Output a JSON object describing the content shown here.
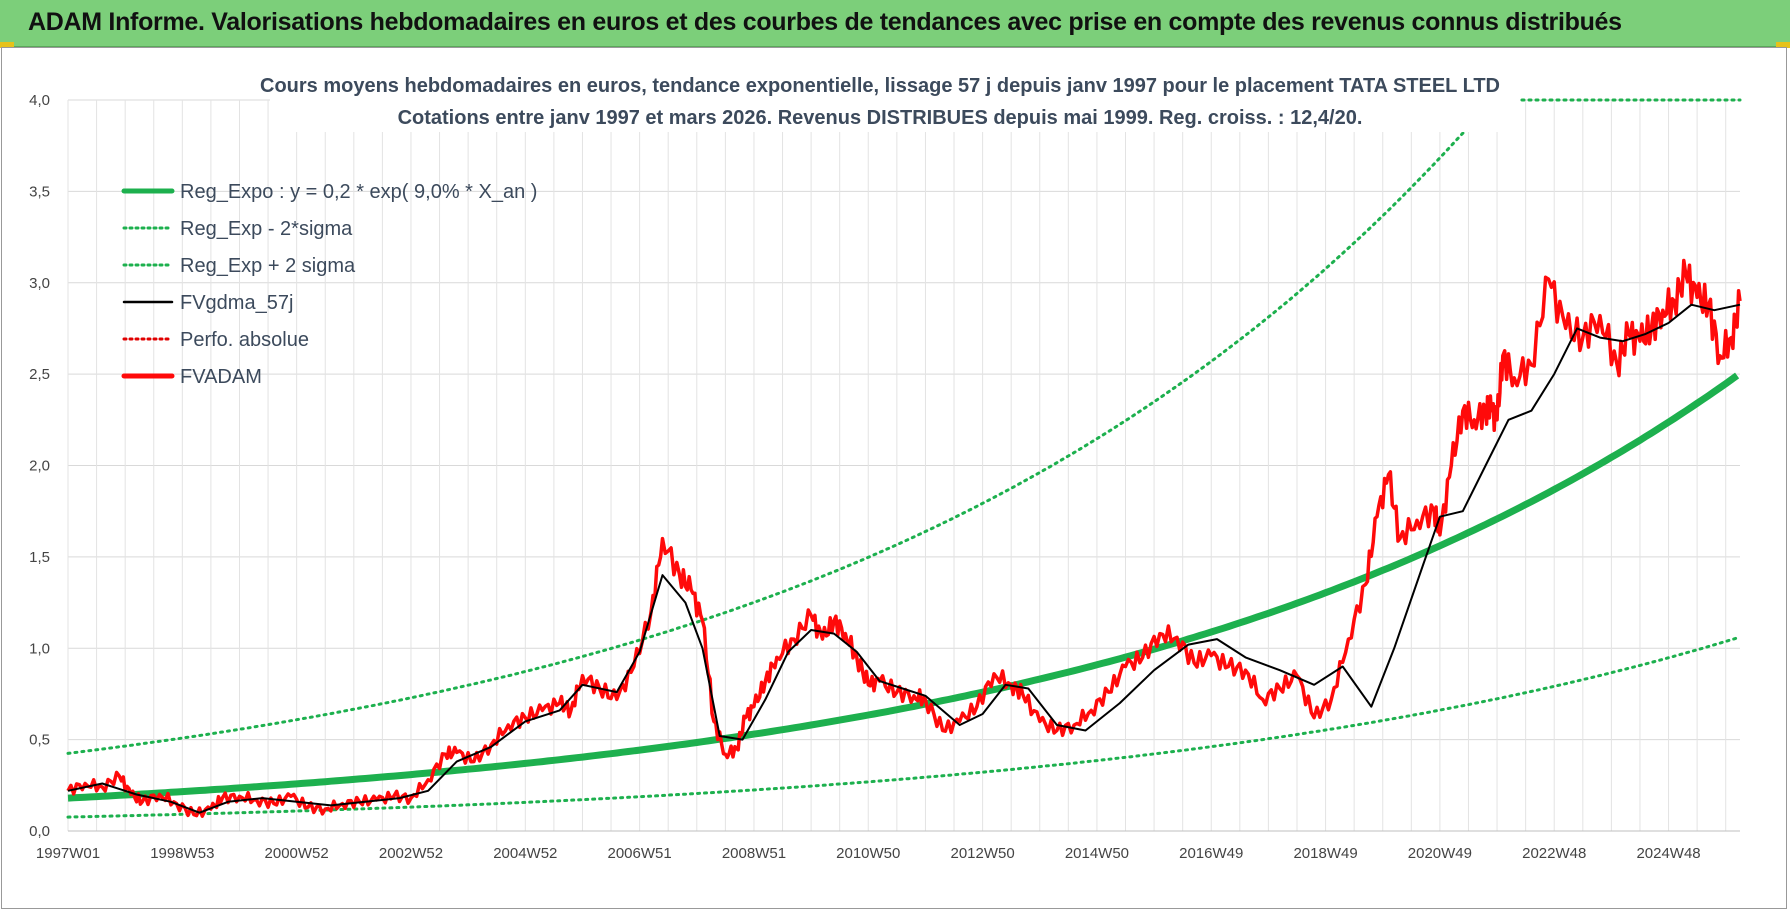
{
  "banner": {
    "title": "ADAM Informe. Valorisations hebdomadaires en euros et des courbes de tendances avec prise en compte des revenus connus distribués"
  },
  "colors": {
    "banner": "#7ccf7a",
    "reg_expo": "#1db04e",
    "sigma": "#1db04e",
    "fvgdma": "#000000",
    "perfo": "#e00000",
    "fvadam": "#ff0a0a"
  },
  "chart_data": {
    "type": "line",
    "title_line1": "Cours moyens hebdomadaires en euros, tendance exponentielle, lissage 57 j depuis janv 1997  pour le placement TATA STEEL LTD",
    "title_line2": "Cotations entre janv 1997 et mars 2026. Revenus DISTRIBUES depuis mai 1999. Reg. croiss. : 12,4/20.",
    "ylim": [
      0,
      4.0
    ],
    "y_ticks": [
      "0,0",
      "0,5",
      "1,0",
      "1,5",
      "2,0",
      "2,5",
      "3,0",
      "3,5",
      "4,0"
    ],
    "x_range_years": [
      1997.0,
      2026.25
    ],
    "x_ticks": [
      {
        "label": "1997W01",
        "year": 1997.0
      },
      {
        "label": "1998W53",
        "year": 1999.0
      },
      {
        "label": "2000W52",
        "year": 2001.0
      },
      {
        "label": "2002W52",
        "year": 2003.0
      },
      {
        "label": "2004W52",
        "year": 2005.0
      },
      {
        "label": "2006W51",
        "year": 2007.0
      },
      {
        "label": "2008W51",
        "year": 2009.0
      },
      {
        "label": "2010W50",
        "year": 2011.0
      },
      {
        "label": "2012W50",
        "year": 2013.0
      },
      {
        "label": "2014W50",
        "year": 2015.0
      },
      {
        "label": "2016W49",
        "year": 2017.0
      },
      {
        "label": "2018W49",
        "year": 2019.0
      },
      {
        "label": "2020W49",
        "year": 2021.0
      },
      {
        "label": "2022W48",
        "year": 2023.0
      },
      {
        "label": "2024W48",
        "year": 2025.0
      }
    ],
    "grid": true,
    "legend_position": "top-left",
    "legend": [
      {
        "name": "Reg_Expo : y = 0,2 * exp( 9,0% *  X_an )",
        "style": "thick-solid",
        "color": "#1db04e"
      },
      {
        "name": "Reg_Exp - 2*sigma",
        "style": "dotted",
        "color": "#1db04e"
      },
      {
        "name": "Reg_Exp + 2 sigma",
        "style": "dotted",
        "color": "#1db04e"
      },
      {
        "name": "FVgdma_57j",
        "style": "solid",
        "color": "#000000"
      },
      {
        "name": "Perfo. absolue",
        "style": "dotted",
        "color": "#e00000"
      },
      {
        "name": "FVADAM",
        "style": "thick-solid",
        "color": "#ff0a0a"
      }
    ],
    "regression": {
      "a": 0.18,
      "rate": 0.09,
      "sigma_factor": 2.36
    },
    "series": [
      {
        "name": "FVADAM",
        "x": [
          1997.0,
          1997.3,
          1997.6,
          1997.9,
          1998.1,
          1998.3,
          1998.6,
          1998.9,
          1999.2,
          1999.5,
          1999.7,
          2000.0,
          2000.3,
          2000.6,
          2000.9,
          2001.2,
          2001.5,
          2001.8,
          2002.1,
          2002.4,
          2002.7,
          2003.0,
          2003.3,
          2003.6,
          2003.8,
          2004.1,
          2004.4,
          2004.7,
          2005.0,
          2005.3,
          2005.6,
          2005.8,
          2006.0,
          2006.3,
          2006.6,
          2006.9,
          2007.2,
          2007.4,
          2007.7,
          2007.9,
          2008.1,
          2008.3,
          2008.5,
          2008.7,
          2008.85,
          2009.0,
          2009.2,
          2009.4,
          2009.7,
          2010.0,
          2010.2,
          2010.4,
          2010.6,
          2010.8,
          2011.0,
          2011.2,
          2011.5,
          2011.8,
          2012.0,
          2012.3,
          2012.6,
          2012.9,
          2013.2,
          2013.5,
          2013.7,
          2014.0,
          2014.3,
          2014.6,
          2014.9,
          2015.2,
          2015.5,
          2015.8,
          2016.1,
          2016.4,
          2016.7,
          2017.0,
          2017.3,
          2017.6,
          2017.9,
          2018.2,
          2018.5,
          2018.8,
          2019.1,
          2019.4,
          2019.7,
          2019.9,
          2020.1,
          2020.3,
          2020.6,
          2020.9,
          2021.0,
          2021.2,
          2021.4,
          2021.6,
          2021.8,
          2021.9,
          2022.0,
          2022.1,
          2022.3,
          2022.6,
          2022.9,
          2023.2,
          2023.5,
          2023.8,
          2024.1,
          2024.3,
          2024.5,
          2024.7,
          2024.9,
          2025.1,
          2025.3,
          2025.5,
          2025.7,
          2025.9,
          2026.1,
          2026.25
        ],
        "values": [
          0.22,
          0.26,
          0.24,
          0.3,
          0.2,
          0.16,
          0.2,
          0.15,
          0.09,
          0.12,
          0.18,
          0.19,
          0.17,
          0.15,
          0.19,
          0.13,
          0.12,
          0.15,
          0.16,
          0.17,
          0.19,
          0.18,
          0.28,
          0.42,
          0.43,
          0.38,
          0.47,
          0.58,
          0.62,
          0.66,
          0.7,
          0.66,
          0.85,
          0.78,
          0.72,
          0.9,
          1.2,
          1.6,
          1.4,
          1.32,
          1.15,
          0.6,
          0.42,
          0.45,
          0.62,
          0.68,
          0.82,
          0.95,
          1.05,
          1.18,
          1.05,
          1.15,
          1.08,
          0.95,
          0.8,
          0.82,
          0.76,
          0.74,
          0.72,
          0.55,
          0.6,
          0.68,
          0.86,
          0.8,
          0.75,
          0.6,
          0.55,
          0.58,
          0.66,
          0.76,
          0.9,
          0.95,
          1.08,
          1.06,
          0.92,
          0.96,
          0.9,
          0.88,
          0.72,
          0.78,
          0.85,
          0.62,
          0.72,
          1.05,
          1.35,
          1.72,
          1.95,
          1.6,
          1.7,
          1.75,
          1.62,
          2.0,
          2.3,
          2.25,
          2.3,
          2.3,
          2.25,
          2.6,
          2.48,
          2.55,
          3.02,
          2.75,
          2.7,
          2.82,
          2.55,
          2.72,
          2.68,
          2.75,
          2.85,
          2.9,
          3.05,
          2.92,
          2.88,
          2.6,
          2.7,
          2.9
        ]
      },
      {
        "name": "FVgdma_57j",
        "x": [
          1997.0,
          1997.6,
          1998.2,
          1998.8,
          1999.3,
          1999.8,
          2000.4,
          2001.0,
          2001.6,
          2002.2,
          2002.8,
          2003.3,
          2003.8,
          2004.4,
          2005.0,
          2005.6,
          2006.0,
          2006.6,
          2007.0,
          2007.4,
          2007.8,
          2008.1,
          2008.4,
          2008.8,
          2009.2,
          2009.6,
          2010.0,
          2010.4,
          2010.8,
          2011.2,
          2011.6,
          2012.0,
          2012.6,
          2013.0,
          2013.4,
          2013.8,
          2014.3,
          2014.8,
          2015.4,
          2016.0,
          2016.6,
          2017.1,
          2017.6,
          2018.2,
          2018.8,
          2019.3,
          2019.8,
          2020.2,
          2020.7,
          2021.0,
          2021.4,
          2021.8,
          2022.2,
          2022.6,
          2023.0,
          2023.4,
          2023.8,
          2024.2,
          2024.6,
          2025.0,
          2025.4,
          2025.8,
          2026.25
        ],
        "values": [
          0.22,
          0.26,
          0.2,
          0.16,
          0.1,
          0.16,
          0.18,
          0.16,
          0.14,
          0.16,
          0.18,
          0.22,
          0.38,
          0.46,
          0.6,
          0.66,
          0.8,
          0.76,
          0.98,
          1.4,
          1.25,
          1.0,
          0.52,
          0.5,
          0.72,
          0.98,
          1.1,
          1.08,
          0.98,
          0.82,
          0.78,
          0.74,
          0.58,
          0.64,
          0.8,
          0.78,
          0.58,
          0.55,
          0.7,
          0.88,
          1.02,
          1.05,
          0.95,
          0.88,
          0.8,
          0.9,
          0.68,
          1.0,
          1.45,
          1.72,
          1.75,
          2.0,
          2.25,
          2.3,
          2.5,
          2.75,
          2.7,
          2.68,
          2.72,
          2.78,
          2.88,
          2.85,
          2.88
        ]
      }
    ]
  }
}
